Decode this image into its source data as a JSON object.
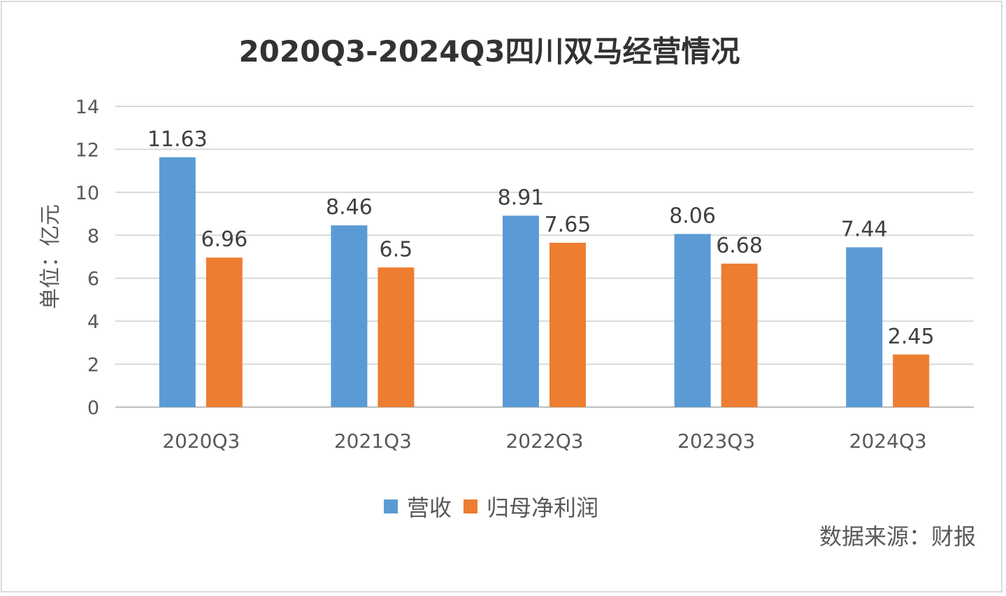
{
  "chart_data": {
    "type": "bar",
    "title": "2020Q3-2024Q3四川双马经营情况",
    "ylabel": "单位：亿元",
    "xlabel": "",
    "categories": [
      "2020Q3",
      "2021Q3",
      "2022Q3",
      "2023Q3",
      "2024Q3"
    ],
    "series": [
      {
        "name": "营收",
        "color": "#5b9bd5",
        "values": [
          11.63,
          8.46,
          8.91,
          8.06,
          7.44
        ],
        "labels": [
          "11.63",
          "8.46",
          "8.91",
          "8.06",
          "7.44"
        ]
      },
      {
        "name": "归母净利润",
        "color": "#ed7d31",
        "values": [
          6.96,
          6.5,
          7.65,
          6.68,
          2.45
        ],
        "labels": [
          "6.96",
          "6.5",
          "7.65",
          "6.68",
          "2.45"
        ]
      }
    ],
    "ylim": [
      0,
      14
    ],
    "yticks": [
      "0",
      "2",
      "4",
      "6",
      "8",
      "10",
      "12",
      "14"
    ],
    "grid": true,
    "legend": "bottom",
    "source": "数据来源：财报"
  }
}
